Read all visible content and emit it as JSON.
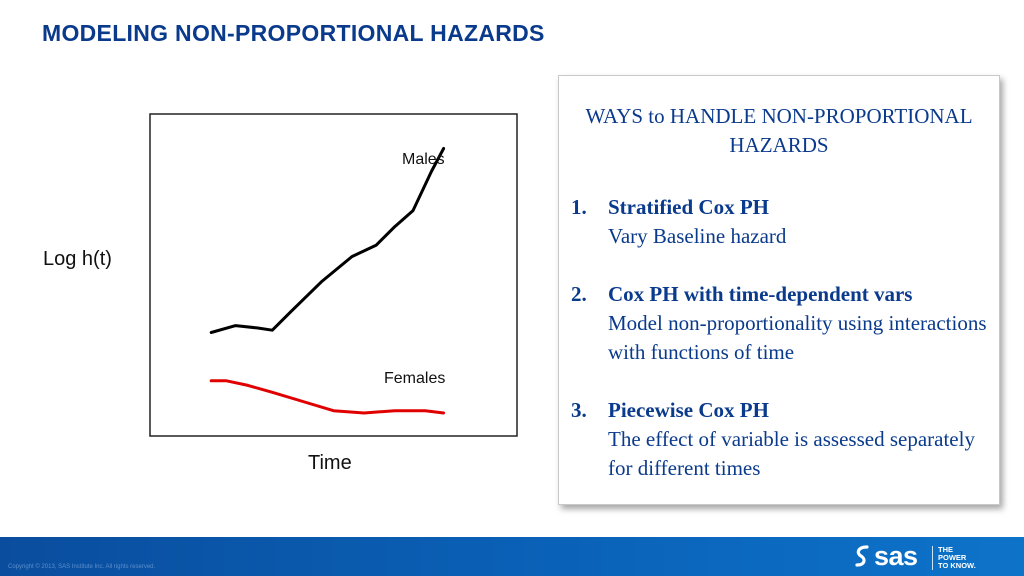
{
  "slide": {
    "title": "MODELING NON-PROPORTIONAL HAZARDS"
  },
  "chart_data": {
    "type": "line",
    "ylabel": "Log h(t)",
    "xlabel": "Time",
    "series": [
      {
        "name": "Males",
        "color": "#000000",
        "points": [
          [
            0,
            0.3
          ],
          [
            0.08,
            0.33
          ],
          [
            0.15,
            0.32
          ],
          [
            0.2,
            0.31
          ],
          [
            0.26,
            0.39
          ],
          [
            0.36,
            0.52
          ],
          [
            0.46,
            0.63
          ],
          [
            0.54,
            0.68
          ],
          [
            0.6,
            0.76
          ],
          [
            0.66,
            0.83
          ],
          [
            0.72,
            1.0
          ],
          [
            0.76,
            1.1
          ]
        ]
      },
      {
        "name": "Females",
        "color": "#e00000",
        "points": [
          [
            0,
            0.09
          ],
          [
            0.05,
            0.09
          ],
          [
            0.12,
            0.07
          ],
          [
            0.2,
            0.04
          ],
          [
            0.3,
            0.0
          ],
          [
            0.4,
            -0.04
          ],
          [
            0.5,
            -0.05
          ],
          [
            0.6,
            -0.04
          ],
          [
            0.7,
            -0.04
          ],
          [
            0.76,
            -0.05
          ]
        ]
      }
    ],
    "xlim": [
      -0.2,
      1.0
    ],
    "ylim": [
      -0.15,
      1.25
    ],
    "grid": false,
    "legend": "none"
  },
  "panel": {
    "heading": "WAYS to HANDLE NON-PROPORTIONAL HAZARDS",
    "items": [
      {
        "num": "1.",
        "head": "Stratified Cox PH",
        "body": "Vary Baseline hazard"
      },
      {
        "num": "2.",
        "head": "Cox PH with time-dependent vars",
        "body": "Model non-proportionality using interactions with functions of time"
      },
      {
        "num": "3.",
        "head": "Piecewise Cox PH",
        "body": "The effect of variable is assessed separately for different times"
      }
    ]
  },
  "footer": {
    "copyright": "Copyright © 2013, SAS Institute Inc. All rights reserved.",
    "logo_text": "sas",
    "tagline": [
      "THE",
      "POWER",
      "TO KNOW."
    ]
  }
}
